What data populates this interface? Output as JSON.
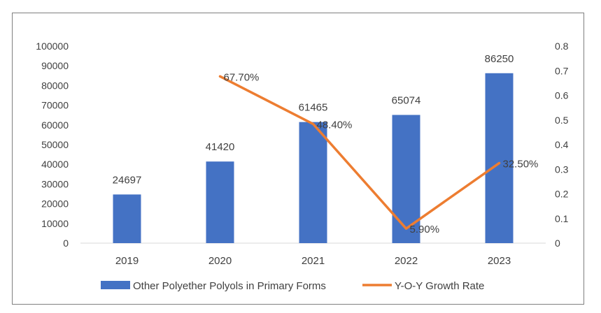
{
  "chart_data": {
    "type": "bar",
    "categories": [
      "2019",
      "2020",
      "2021",
      "2022",
      "2023"
    ],
    "series": [
      {
        "name": "Other Polyether Polyols in Primary Forms",
        "type": "bar",
        "axis": "left",
        "values": [
          24697,
          41420,
          61465,
          65074,
          86250
        ],
        "labels": [
          "24697",
          "41420",
          "61465",
          "65074",
          "86250"
        ]
      },
      {
        "name": "Y-O-Y Growth Rate",
        "type": "line",
        "axis": "right",
        "values": [
          null,
          0.677,
          0.484,
          0.059,
          0.325
        ],
        "labels": [
          "",
          "67.70%",
          "48.40%",
          "5.90%",
          "32.50%"
        ]
      }
    ],
    "y_left": {
      "ylim": [
        0,
        100000
      ],
      "ticks": [
        "0",
        "10000",
        "20000",
        "30000",
        "40000",
        "50000",
        "60000",
        "70000",
        "80000",
        "90000",
        "100000"
      ]
    },
    "y_right": {
      "ylim": [
        0,
        0.8
      ],
      "ticks": [
        "0",
        "0.1",
        "0.2",
        "0.3",
        "0.4",
        "0.5",
        "0.6",
        "0.7",
        "0.8"
      ]
    },
    "legend": {
      "placement": "bottom",
      "items": [
        "Other Polyether Polyols in Primary Forms",
        "Y-O-Y Growth Rate"
      ]
    },
    "grid": false,
    "colors": {
      "bar": "#4472c4",
      "line": "#ed7d31",
      "text": "#404040",
      "axis": "#d9d9d9"
    }
  }
}
